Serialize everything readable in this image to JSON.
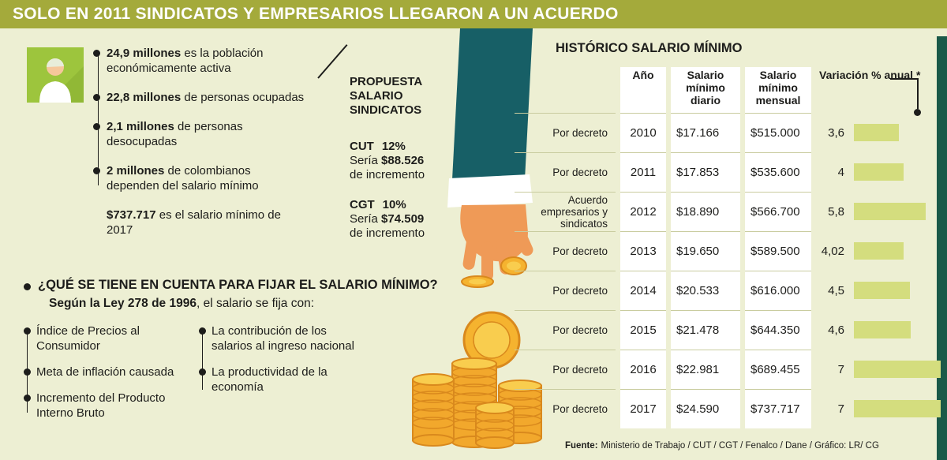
{
  "colors": {
    "background": "#edefd3",
    "banner_green": "#a4aa3b",
    "accent_bar_dark_green": "#1a5948",
    "bar_fill": "#d4dd7e",
    "sleeve_teal": "#175f66",
    "icon_green": "#9dc53d",
    "coin_gold": "#f5b32f"
  },
  "header": {
    "title": "SOLO EN 2011 SINDICATOS Y EMPRESARIOS LLEGARON A UN ACUERDO"
  },
  "population": {
    "items": [
      {
        "strong": "24,9 millones",
        "rest": "es la población económicamente activa"
      },
      {
        "strong": "22,8 millones",
        "rest": "de personas ocupadas"
      },
      {
        "strong": "2,1 millones",
        "rest": "de personas desocupadas"
      },
      {
        "strong": "2 millones",
        "rest": "de colombianos dependen del salario mínimo"
      },
      {
        "strong": "$737.717",
        "rest": "es el salario mínimo de 2017"
      }
    ]
  },
  "proposal": {
    "title": "PROPUESTA SALARIO SINDICATOS",
    "items": [
      {
        "org": "CUT",
        "pct": "12%",
        "prefix": "Sería",
        "amount": "$88.526",
        "suffix": "de incremento"
      },
      {
        "org": "CGT",
        "pct": "10%",
        "prefix": "Sería",
        "amount": "$74.509",
        "suffix": "de incremento"
      }
    ]
  },
  "criteria": {
    "title": "¿QUÉ SE TIENE EN CUENTA PARA FIJAR EL SALARIO MÍNIMO?",
    "subtitle_strong": "Según la Ley 278 de 1996",
    "subtitle_rest": ", el salario se fija con:",
    "col1": [
      "Índice de Precios al Consumidor",
      "Meta de inflación causada",
      "Incremento del Producto Interno Bruto"
    ],
    "col2": [
      "La contribución de los salarios al ingreso nacional",
      "La productividad de la economía"
    ]
  },
  "table": {
    "title": "HISTÓRICO SALARIO MÍNIMO",
    "headers": {
      "year": "Año",
      "daily": "Salario mínimo diario",
      "monthly": "Salario mínimo mensual",
      "variation": "Variación % anual *"
    },
    "rows": [
      {
        "label": "Por decreto",
        "year": "2010",
        "daily": "$17.166",
        "monthly": "$515.000",
        "variation": "3,6",
        "variation_value": 3.6
      },
      {
        "label": "Por decreto",
        "year": "2011",
        "daily": "$17.853",
        "monthly": "$535.600",
        "variation": "4",
        "variation_value": 4
      },
      {
        "label": "Acuerdo empresarios y sindicatos",
        "year": "2012",
        "daily": "$18.890",
        "monthly": "$566.700",
        "variation": "5,8",
        "variation_value": 5.8
      },
      {
        "label": "Por decreto",
        "year": "2013",
        "daily": "$19.650",
        "monthly": "$589.500",
        "variation": "4,02",
        "variation_value": 4.02
      },
      {
        "label": "Por decreto",
        "year": "2014",
        "daily": "$20.533",
        "monthly": "$616.000",
        "variation": "4,5",
        "variation_value": 4.5
      },
      {
        "label": "Por decreto",
        "year": "2015",
        "daily": "$21.478",
        "monthly": "$644.350",
        "variation": "4,6",
        "variation_value": 4.6
      },
      {
        "label": "Por decreto",
        "year": "2016",
        "daily": "$22.981",
        "monthly": "$689.455",
        "variation": "7",
        "variation_value": 7
      },
      {
        "label": "Por decreto",
        "year": "2017",
        "daily": "$24.590",
        "monthly": "$737.717",
        "variation": "7",
        "variation_value": 7
      }
    ]
  },
  "footer": {
    "label": "Fuente:",
    "text": "Ministerio de Trabajo / CUT / CGT / Fenalco / Dane / Gráfico: LR/ CG"
  },
  "chart_data": {
    "type": "table",
    "title": "HISTÓRICO SALARIO MÍNIMO",
    "columns": [
      "Año",
      "Salario mínimo diario",
      "Salario mínimo mensual",
      "Variación % anual"
    ],
    "categories": [
      "2010",
      "2011",
      "2012",
      "2013",
      "2014",
      "2015",
      "2016",
      "2017"
    ],
    "row_labels": [
      "Por decreto",
      "Por decreto",
      "Acuerdo empresarios y sindicatos",
      "Por decreto",
      "Por decreto",
      "Por decreto",
      "Por decreto",
      "Por decreto"
    ],
    "series": [
      {
        "name": "Salario mínimo diario",
        "values": [
          17166,
          17853,
          18890,
          19650,
          20533,
          21478,
          22981,
          24590
        ]
      },
      {
        "name": "Salario mínimo mensual",
        "values": [
          515000,
          535600,
          566700,
          589500,
          616000,
          644350,
          689455,
          737717
        ]
      },
      {
        "name": "Variación % anual",
        "values": [
          3.6,
          4,
          5.8,
          4.02,
          4.5,
          4.6,
          7,
          7
        ]
      }
    ],
    "legend_position": "none",
    "grid": false
  }
}
